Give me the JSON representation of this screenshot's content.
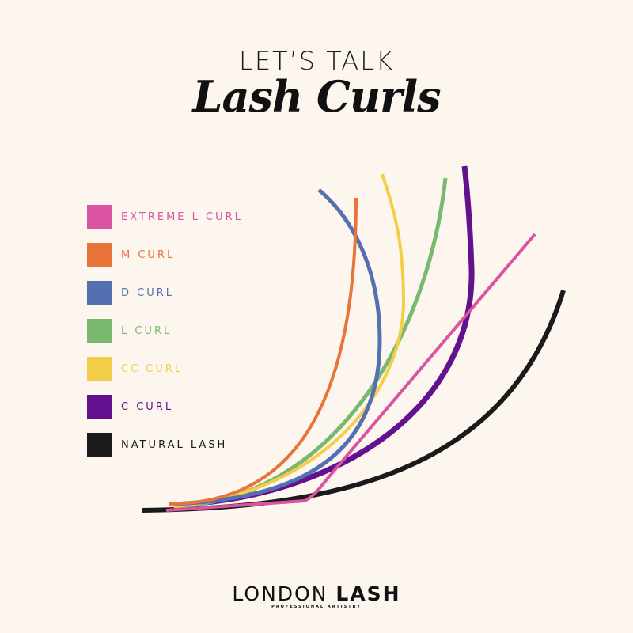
{
  "title_line1": "LET’S TALK",
  "title_line2": "Lash Curls",
  "legend": [
    {
      "label": "EXTREME L CURL",
      "color": "#db54a1"
    },
    {
      "label": "M CURL",
      "color": "#e8743a"
    },
    {
      "label": "D CURL",
      "color": "#5470b0"
    },
    {
      "label": "L CURL",
      "color": "#79b96d"
    },
    {
      "label": "CC CURL",
      "color": "#f3cf49"
    },
    {
      "label": "C CURL",
      "color": "#63128f"
    },
    {
      "label": "NATURAL LASH",
      "color": "#1a1a1a"
    }
  ],
  "logo": {
    "part1": "LONDON",
    "part2": "LASH",
    "tagline": "PROFESSIONAL ARTISTRY"
  }
}
